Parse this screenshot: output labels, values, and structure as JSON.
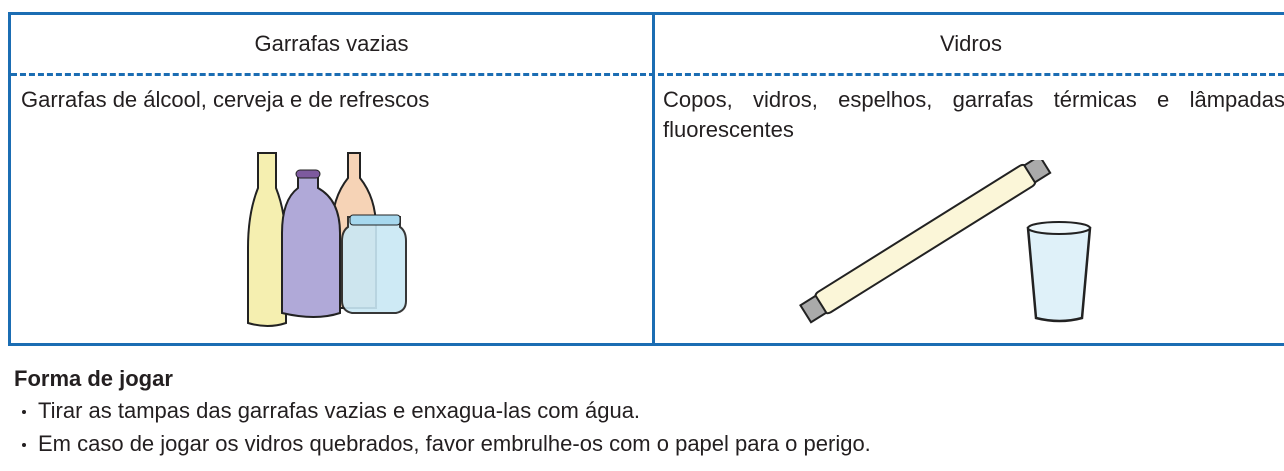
{
  "table": {
    "header": [
      "Garrafas vazias",
      "Vidros"
    ],
    "rows": [
      [
        "Garrafas de álcool, cerveja e de refrescos",
        "Copos, vidros, espelhos, garrafas térmicas e lâmpadas fluorescentes"
      ]
    ]
  },
  "instructions": {
    "title": "Forma de jogar",
    "items": [
      "Tirar as tampas das garrafas vazias e enxagua-las com água.",
      "Em caso de jogar os vidros quebrados, favor embrulhe-os com o papel para o perigo."
    ]
  }
}
